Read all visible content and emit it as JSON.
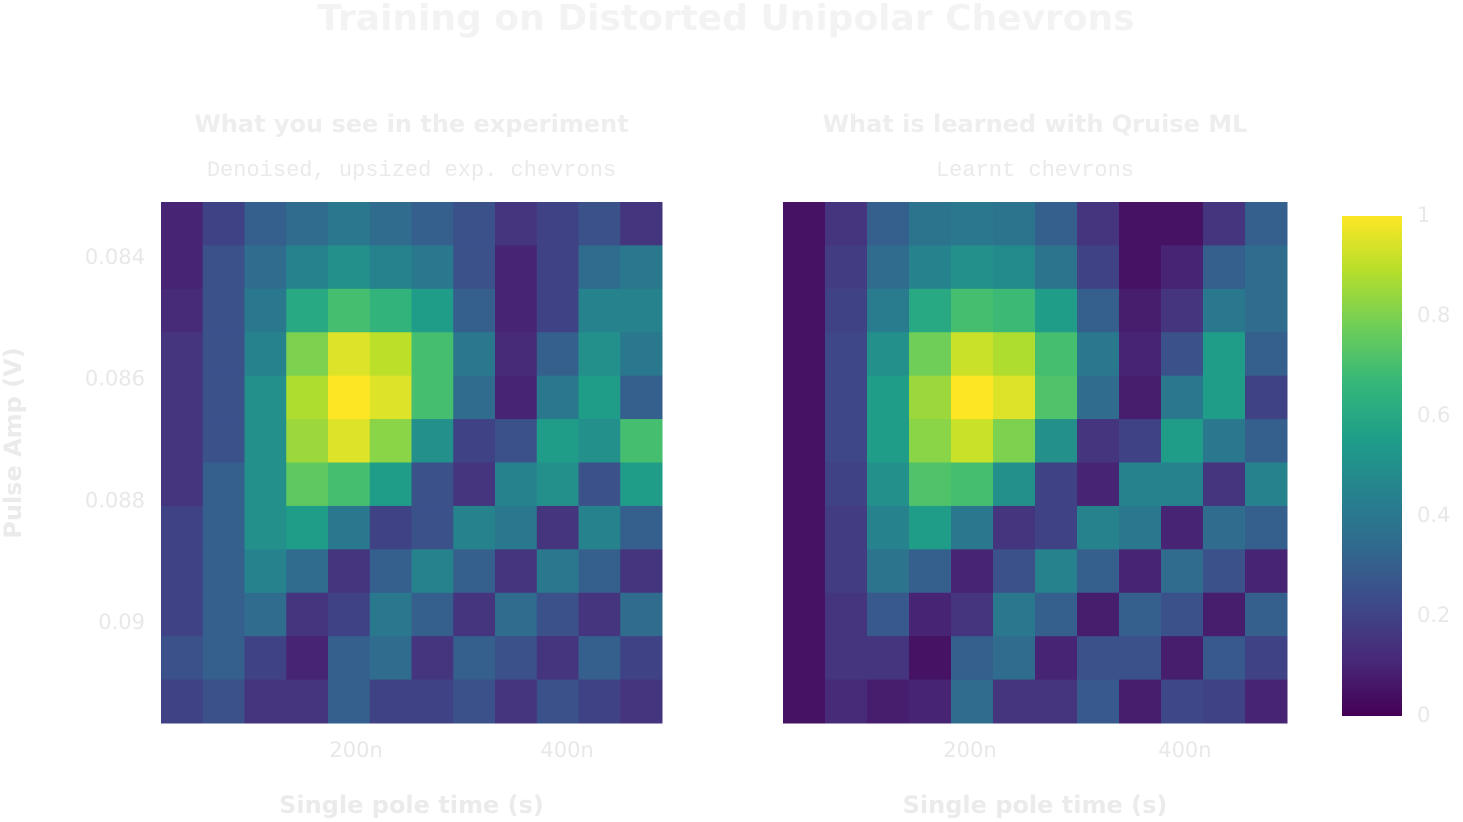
{
  "title": "Training on Distorted Unipolar Chevrons",
  "colorbar": {
    "colorscale": "Viridis",
    "zlim": [
      0,
      1
    ],
    "ticks": [
      0,
      0.2,
      0.4,
      0.6,
      0.8,
      1
    ]
  },
  "chart_data": [
    {
      "type": "heatmap",
      "title": "What you see in the experiment",
      "subtitle": "Denoised, upsized exp. chevrons",
      "x_label": "Single pole time (s)",
      "y_label": "Pulse Amp (V)",
      "xlim": [
        1.5e-08,
        4.9e-07
      ],
      "ylim": [
        0.08308,
        0.09164
      ],
      "xticks": [
        {
          "value": 2e-07,
          "label": "200n"
        },
        {
          "value": 4e-07,
          "label": "400n"
        }
      ],
      "yticks": [
        0.084,
        0.086,
        0.088,
        0.09
      ],
      "z": [
        [
          0.1,
          0.2,
          0.3,
          0.35,
          0.4,
          0.35,
          0.3,
          0.25,
          0.15,
          0.2,
          0.25,
          0.15
        ],
        [
          0.1,
          0.25,
          0.35,
          0.45,
          0.5,
          0.45,
          0.4,
          0.25,
          0.1,
          0.2,
          0.35,
          0.4
        ],
        [
          0.12,
          0.25,
          0.4,
          0.6,
          0.7,
          0.65,
          0.55,
          0.3,
          0.1,
          0.2,
          0.45,
          0.45
        ],
        [
          0.15,
          0.25,
          0.45,
          0.8,
          0.95,
          0.9,
          0.7,
          0.4,
          0.12,
          0.3,
          0.5,
          0.4
        ],
        [
          0.15,
          0.25,
          0.5,
          0.88,
          1.0,
          0.95,
          0.7,
          0.35,
          0.1,
          0.4,
          0.55,
          0.3
        ],
        [
          0.15,
          0.25,
          0.5,
          0.85,
          0.95,
          0.82,
          0.5,
          0.2,
          0.25,
          0.55,
          0.5,
          0.7
        ],
        [
          0.15,
          0.3,
          0.5,
          0.75,
          0.7,
          0.55,
          0.25,
          0.15,
          0.45,
          0.5,
          0.25,
          0.55
        ],
        [
          0.2,
          0.3,
          0.5,
          0.55,
          0.4,
          0.2,
          0.25,
          0.45,
          0.4,
          0.15,
          0.45,
          0.3
        ],
        [
          0.2,
          0.3,
          0.45,
          0.35,
          0.15,
          0.3,
          0.45,
          0.3,
          0.15,
          0.4,
          0.3,
          0.15
        ],
        [
          0.2,
          0.3,
          0.35,
          0.15,
          0.2,
          0.4,
          0.3,
          0.15,
          0.35,
          0.25,
          0.15,
          0.35
        ],
        [
          0.25,
          0.3,
          0.2,
          0.1,
          0.3,
          0.35,
          0.15,
          0.3,
          0.25,
          0.15,
          0.3,
          0.2
        ],
        [
          0.2,
          0.25,
          0.15,
          0.15,
          0.3,
          0.2,
          0.2,
          0.25,
          0.15,
          0.25,
          0.2,
          0.15
        ]
      ]
    },
    {
      "type": "heatmap",
      "title": "What is learned with Qruise ML",
      "subtitle": "Learnt chevrons",
      "x_label": "Single pole time (s)",
      "xlim": [
        2.6e-08,
        4.95e-07
      ],
      "ylim": [
        0.08308,
        0.09164
      ],
      "xticks": [
        {
          "value": 2e-07,
          "label": "200n"
        },
        {
          "value": 4e-07,
          "label": "400n"
        }
      ],
      "z": [
        [
          0.05,
          0.15,
          0.3,
          0.38,
          0.4,
          0.38,
          0.3,
          0.15,
          0.05,
          0.05,
          0.15,
          0.3
        ],
        [
          0.05,
          0.18,
          0.35,
          0.45,
          0.5,
          0.48,
          0.38,
          0.2,
          0.05,
          0.1,
          0.3,
          0.35
        ],
        [
          0.05,
          0.2,
          0.42,
          0.6,
          0.7,
          0.68,
          0.55,
          0.3,
          0.08,
          0.15,
          0.4,
          0.35
        ],
        [
          0.05,
          0.22,
          0.5,
          0.78,
          0.92,
          0.88,
          0.7,
          0.4,
          0.1,
          0.25,
          0.55,
          0.3
        ],
        [
          0.05,
          0.22,
          0.55,
          0.85,
          1.0,
          0.95,
          0.72,
          0.35,
          0.08,
          0.4,
          0.55,
          0.2
        ],
        [
          0.05,
          0.22,
          0.55,
          0.82,
          0.92,
          0.8,
          0.5,
          0.15,
          0.2,
          0.55,
          0.4,
          0.3
        ],
        [
          0.05,
          0.2,
          0.5,
          0.72,
          0.7,
          0.5,
          0.2,
          0.1,
          0.45,
          0.45,
          0.15,
          0.45
        ],
        [
          0.05,
          0.18,
          0.45,
          0.55,
          0.4,
          0.15,
          0.2,
          0.45,
          0.4,
          0.1,
          0.35,
          0.3
        ],
        [
          0.05,
          0.18,
          0.38,
          0.3,
          0.1,
          0.25,
          0.45,
          0.3,
          0.1,
          0.35,
          0.25,
          0.1
        ],
        [
          0.05,
          0.15,
          0.28,
          0.1,
          0.15,
          0.4,
          0.3,
          0.08,
          0.3,
          0.25,
          0.08,
          0.3
        ],
        [
          0.05,
          0.15,
          0.15,
          0.05,
          0.3,
          0.35,
          0.1,
          0.25,
          0.25,
          0.08,
          0.28,
          0.2
        ],
        [
          0.05,
          0.12,
          0.08,
          0.1,
          0.35,
          0.15,
          0.15,
          0.28,
          0.08,
          0.22,
          0.2,
          0.1
        ]
      ]
    }
  ]
}
